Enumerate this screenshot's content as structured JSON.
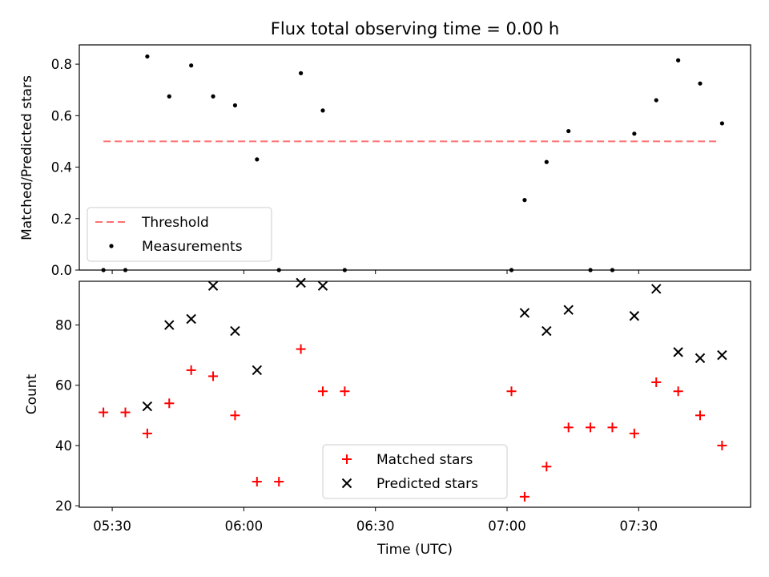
{
  "title": "Flux total observing time = 0.00 h",
  "colors": {
    "threshold": "#ff7070",
    "measurement": "#000000",
    "matched": "#ff0000",
    "predicted": "#000000"
  },
  "chart_data": [
    {
      "type": "scatter",
      "ylabel": "Matched/Predicted stars",
      "ylim": [
        0,
        0.875
      ],
      "yticks": [
        "0.0",
        "0.2",
        "0.4",
        "0.6",
        "0.8"
      ],
      "ytick_values": [
        0,
        0.2,
        0.4,
        0.6,
        0.8
      ],
      "threshold": {
        "name": "Threshold",
        "value": 0.5,
        "x": [
          "05:28",
          "07:48"
        ]
      },
      "legend": [
        "Threshold",
        "Measurements"
      ],
      "legend_position": "lower-left",
      "series": [
        {
          "name": "Measurements",
          "x": [
            "05:28",
            "05:33",
            "05:38",
            "05:43",
            "05:48",
            "05:53",
            "05:58",
            "06:03",
            "06:08",
            "06:13",
            "06:18",
            "06:23",
            "07:01",
            "07:04",
            "07:09",
            "07:14",
            "07:19",
            "07:24",
            "07:29",
            "07:34",
            "07:39",
            "07:44",
            "07:49"
          ],
          "y": [
            0,
            0,
            0.83,
            0.675,
            0.795,
            0.675,
            0.64,
            0.43,
            0,
            0.765,
            0.62,
            0,
            0,
            0.272,
            0.42,
            0.54,
            0,
            0,
            0.53,
            0.66,
            0.815,
            0.725,
            0.57
          ]
        }
      ]
    },
    {
      "type": "scatter",
      "ylabel": "Count",
      "xlabel": "Time (UTC)",
      "ylim": [
        19.5,
        94.5
      ],
      "yticks": [
        "20",
        "40",
        "60",
        "80"
      ],
      "ytick_values": [
        20,
        40,
        60,
        80
      ],
      "xticks": [
        "05:30",
        "06:00",
        "06:30",
        "07:00",
        "07:30"
      ],
      "legend": [
        "Matched stars",
        "Predicted stars"
      ],
      "legend_position": "lower-center",
      "series": [
        {
          "name": "Matched stars",
          "x": [
            "05:28",
            "05:33",
            "05:38",
            "05:43",
            "05:48",
            "05:53",
            "05:58",
            "06:03",
            "06:08",
            "06:13",
            "06:18",
            "06:23",
            "07:01",
            "07:04",
            "07:09",
            "07:14",
            "07:19",
            "07:24",
            "07:29",
            "07:34",
            "07:39",
            "07:44",
            "07:49"
          ],
          "y": [
            51,
            51,
            44,
            54,
            65,
            63,
            50,
            28,
            28,
            72,
            58,
            58,
            58,
            23,
            33,
            46,
            46,
            46,
            44,
            61,
            58,
            50,
            40
          ]
        },
        {
          "name": "Predicted stars",
          "x": [
            "05:38",
            "05:43",
            "05:48",
            "05:53",
            "05:58",
            "06:03",
            "06:13",
            "06:18",
            "07:04",
            "07:09",
            "07:14",
            "07:29",
            "07:34",
            "07:39",
            "07:44",
            "07:49"
          ],
          "y": [
            53,
            80,
            82,
            93,
            78,
            65,
            94,
            93,
            84,
            78,
            85,
            83,
            92,
            71,
            69,
            70
          ]
        }
      ]
    }
  ]
}
